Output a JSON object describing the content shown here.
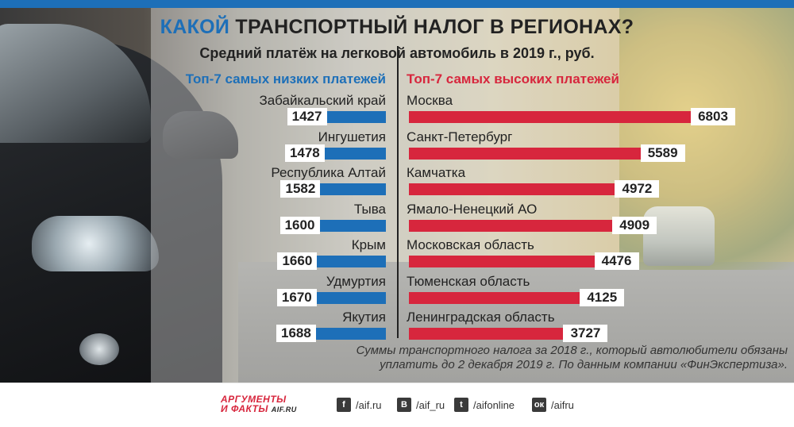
{
  "title": {
    "highlight": "КАКОЙ",
    "rest": " ТРАНСПОРТНЫЙ НАЛОГ В РЕГИОНАХ?"
  },
  "subtitle": "Средний платёж на легковой автомобиль в 2019 г., руб.",
  "colors": {
    "accent_blue": "#1d6fb8",
    "accent_red": "#d7263d"
  },
  "chart_data": [
    {
      "type": "bar",
      "orientation": "horizontal",
      "title": "Топ-7 самых низких платежей",
      "categories": [
        "Забайкальский край",
        "Ингушетия",
        "Республика Алтай",
        "Тыва",
        "Крым",
        "Удмуртия",
        "Якутия"
      ],
      "values": [
        1427,
        1478,
        1582,
        1600,
        1660,
        1670,
        1688
      ],
      "direction": "right-to-left",
      "color": "#1d6fb8"
    },
    {
      "type": "bar",
      "orientation": "horizontal",
      "title": "Топ-7 самых высоких платежей",
      "categories": [
        "Москва",
        "Санкт-Петербург",
        "Камчатка",
        "Ямало-Ненецкий АО",
        "Московская область",
        "Тюменская область",
        "Ленинградская область"
      ],
      "values": [
        6803,
        5589,
        4972,
        4909,
        4476,
        4125,
        3727
      ],
      "direction": "left-to-right",
      "color": "#d7263d"
    }
  ],
  "note": "Суммы транспортного налога за 2018 г., который автолюбители обязаны уплатить до 2 декабря 2019 г. По данным компании «ФинЭкспертиза».",
  "footer": {
    "logo_line1": "АРГУМЕНТЫ",
    "logo_line2": "И ФАКТЫ",
    "logo_site": "AIF.RU",
    "socials": [
      {
        "icon": "facebook-icon",
        "glyph": "f",
        "handle": "/aif.ru"
      },
      {
        "icon": "vk-icon",
        "glyph": "В",
        "handle": "/aif_ru"
      },
      {
        "icon": "twitter-icon",
        "glyph": "t",
        "handle": "/aifonline"
      },
      {
        "icon": "odnoklassniki-icon",
        "glyph": "ок",
        "handle": "/aifru"
      }
    ]
  }
}
